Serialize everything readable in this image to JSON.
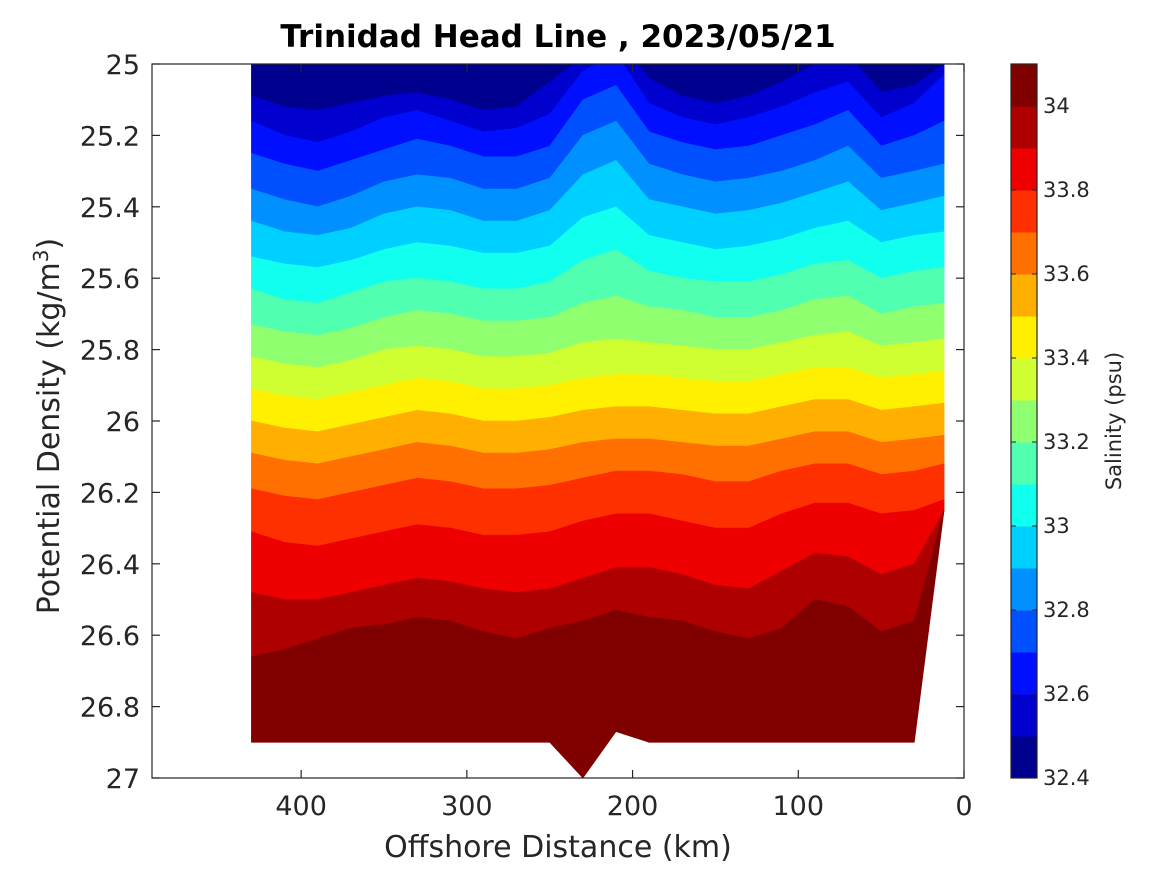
{
  "chart_data": {
    "type": "contour",
    "title": "Trinidad Head Line , 2023/05/21",
    "xlabel": "Offshore Distance (km)",
    "ylabel_main": "Potential Density (kg/m",
    "ylabel_sup": "3",
    "ylabel_end": ")",
    "xlim": [
      490,
      0
    ],
    "ylim": [
      25,
      27
    ],
    "xdir": "reverse",
    "ydir": "reverse",
    "x_ticks": [
      400,
      300,
      200,
      100,
      0
    ],
    "x_tick_labels": [
      "400",
      "300",
      "200",
      "100",
      "0"
    ],
    "y_ticks": [
      25,
      25.2,
      25.4,
      25.6,
      25.8,
      26,
      26.2,
      26.4,
      26.6,
      26.8,
      27
    ],
    "y_tick_labels": [
      "25",
      "25.2",
      "25.4",
      "25.6",
      "25.8",
      "26",
      "26.2",
      "26.4",
      "26.6",
      "26.8",
      "27"
    ],
    "colorbar": {
      "label": "Salinity (psu)",
      "range": [
        32.4,
        34.1
      ],
      "levels": [
        32.4,
        32.5,
        32.6,
        32.7,
        32.8,
        32.9,
        33.0,
        33.1,
        33.2,
        33.3,
        33.4,
        33.5,
        33.6,
        33.7,
        33.8,
        33.9,
        34.0,
        34.1
      ],
      "tick_values": [
        32.4,
        32.6,
        32.8,
        33.0,
        33.2,
        33.4,
        33.6,
        33.8,
        34.0
      ],
      "tick_labels": [
        "32.4",
        "32.6",
        "32.8",
        "33",
        "33.2",
        "33.4",
        "33.6",
        "33.8",
        "34"
      ],
      "colors": [
        "#00008f",
        "#0000cf",
        "#0010ff",
        "#0050ff",
        "#0090ff",
        "#00d0ff",
        "#10ffef",
        "#50ffaf",
        "#90ff6f",
        "#cfff30",
        "#ffef00",
        "#ffaf00",
        "#ff7000",
        "#ff3000",
        "#ef0000",
        "#af0000",
        "#800000"
      ]
    },
    "section": {
      "x_km": [
        430,
        410,
        390,
        370,
        350,
        330,
        310,
        290,
        270,
        250,
        230,
        210,
        190,
        170,
        150,
        130,
        110,
        90,
        70,
        50,
        30,
        12
      ],
      "sigma_bottom": [
        26.9,
        26.9,
        26.9,
        26.9,
        26.9,
        26.9,
        26.9,
        26.9,
        26.9,
        26.9,
        27.0,
        26.87,
        26.9,
        26.9,
        26.9,
        26.9,
        26.9,
        26.9,
        26.9,
        26.9,
        26.9,
        26.25
      ],
      "isohaline_sigma": {
        "32.5": [
          25.09,
          25.12,
          25.13,
          25.11,
          25.09,
          25.08,
          25.1,
          25.13,
          25.12,
          25.05,
          24.98,
          24.92,
          25.04,
          25.09,
          25.11,
          25.09,
          25.05,
          25.0,
          24.97,
          25.08,
          25.06,
          25.0
        ],
        "32.6": [
          25.16,
          25.2,
          25.22,
          25.19,
          25.15,
          25.13,
          25.16,
          25.19,
          25.18,
          25.14,
          25.02,
          24.97,
          25.11,
          25.15,
          25.17,
          25.15,
          25.12,
          25.08,
          25.05,
          25.15,
          25.11,
          25.03
        ],
        "32.7": [
          25.25,
          25.28,
          25.3,
          25.27,
          25.24,
          25.21,
          25.23,
          25.26,
          25.26,
          25.23,
          25.1,
          25.06,
          25.19,
          25.22,
          25.24,
          25.23,
          25.2,
          25.17,
          25.13,
          25.23,
          25.2,
          25.16
        ],
        "32.8": [
          25.35,
          25.38,
          25.4,
          25.37,
          25.33,
          25.31,
          25.32,
          25.35,
          25.35,
          25.32,
          25.2,
          25.16,
          25.28,
          25.31,
          25.33,
          25.32,
          25.3,
          25.27,
          25.23,
          25.32,
          25.3,
          25.28
        ],
        "32.9": [
          25.44,
          25.47,
          25.48,
          25.46,
          25.42,
          25.4,
          25.41,
          25.44,
          25.44,
          25.41,
          25.31,
          25.27,
          25.38,
          25.4,
          25.42,
          25.41,
          25.39,
          25.36,
          25.33,
          25.41,
          25.39,
          25.37
        ],
        "33.0": [
          25.54,
          25.56,
          25.57,
          25.55,
          25.52,
          25.5,
          25.51,
          25.53,
          25.53,
          25.51,
          25.43,
          25.4,
          25.48,
          25.5,
          25.52,
          25.51,
          25.49,
          25.46,
          25.44,
          25.5,
          25.48,
          25.47
        ],
        "33.1": [
          25.63,
          25.66,
          25.67,
          25.64,
          25.61,
          25.6,
          25.61,
          25.63,
          25.63,
          25.61,
          25.55,
          25.52,
          25.58,
          25.6,
          25.61,
          25.61,
          25.59,
          25.56,
          25.55,
          25.6,
          25.58,
          25.57
        ],
        "33.2": [
          25.73,
          25.75,
          25.76,
          25.74,
          25.71,
          25.69,
          25.7,
          25.72,
          25.72,
          25.71,
          25.67,
          25.65,
          25.68,
          25.69,
          25.71,
          25.71,
          25.69,
          25.66,
          25.65,
          25.7,
          25.68,
          25.67
        ],
        "33.3": [
          25.82,
          25.84,
          25.85,
          25.83,
          25.8,
          25.79,
          25.8,
          25.82,
          25.82,
          25.81,
          25.78,
          25.77,
          25.78,
          25.79,
          25.8,
          25.8,
          25.78,
          25.76,
          25.75,
          25.79,
          25.78,
          25.77
        ],
        "33.4": [
          25.91,
          25.93,
          25.94,
          25.92,
          25.9,
          25.88,
          25.89,
          25.91,
          25.91,
          25.9,
          25.88,
          25.87,
          25.87,
          25.88,
          25.89,
          25.89,
          25.87,
          25.85,
          25.85,
          25.88,
          25.87,
          25.86
        ],
        "33.5": [
          26.0,
          26.02,
          26.03,
          26.01,
          25.99,
          25.97,
          25.98,
          26.0,
          26.0,
          25.99,
          25.97,
          25.96,
          25.96,
          25.97,
          25.98,
          25.98,
          25.96,
          25.94,
          25.94,
          25.97,
          25.96,
          25.95
        ],
        "33.6": [
          26.09,
          26.11,
          26.12,
          26.1,
          26.08,
          26.06,
          26.07,
          26.09,
          26.09,
          26.08,
          26.06,
          26.05,
          26.05,
          26.06,
          26.07,
          26.07,
          26.05,
          26.03,
          26.03,
          26.06,
          26.05,
          26.04
        ],
        "33.7": [
          26.19,
          26.21,
          26.22,
          26.2,
          26.18,
          26.16,
          26.17,
          26.19,
          26.19,
          26.18,
          26.16,
          26.14,
          26.14,
          26.15,
          26.17,
          26.17,
          26.14,
          26.12,
          26.12,
          26.15,
          26.14,
          26.12
        ],
        "33.8": [
          26.31,
          26.34,
          26.35,
          26.33,
          26.31,
          26.29,
          26.3,
          26.32,
          26.32,
          26.31,
          26.28,
          26.26,
          26.26,
          26.28,
          26.3,
          26.3,
          26.26,
          26.23,
          26.23,
          26.26,
          26.25,
          26.22
        ],
        "33.9": [
          26.48,
          26.5,
          26.5,
          26.48,
          26.46,
          26.44,
          26.45,
          26.47,
          26.48,
          26.47,
          26.44,
          26.41,
          26.41,
          26.43,
          26.46,
          26.47,
          26.42,
          26.37,
          26.38,
          26.43,
          26.4,
          26.35
        ],
        "34.0": [
          26.66,
          26.64,
          26.61,
          26.58,
          26.57,
          26.55,
          26.56,
          26.59,
          26.61,
          26.58,
          26.56,
          26.53,
          26.55,
          26.56,
          26.59,
          26.61,
          26.58,
          26.5,
          26.52,
          26.59,
          26.56,
          26.5
        ],
        "34.1": [
          26.99,
          26.96,
          26.9,
          26.86,
          26.84,
          26.82,
          26.83,
          26.84,
          26.85,
          26.86,
          26.83,
          26.78,
          26.82,
          26.83,
          26.81,
          26.81,
          26.84,
          26.78,
          26.79,
          26.84,
          26.82,
          26.78
        ]
      }
    }
  }
}
